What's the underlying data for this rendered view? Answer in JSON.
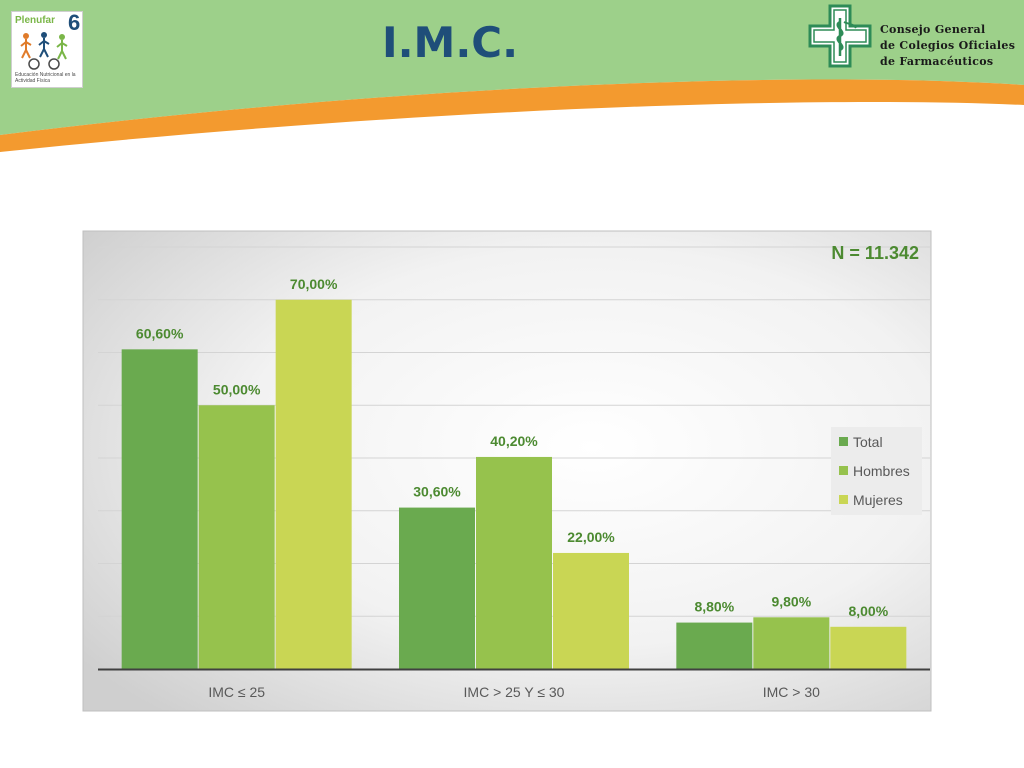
{
  "slide": {
    "title": "I.M.C.",
    "logo_left": {
      "brand": "Plenufar",
      "number": "6",
      "subtitle": "Educación Nutricional en la Actividad Física"
    },
    "logo_right": {
      "lines": [
        "Consejo General",
        "de Colegios Oficiales",
        "de Farmacéuticos"
      ]
    }
  },
  "colors": {
    "header_green": "#9dd08a",
    "header_orange": "#f39a2f",
    "total": "#6aaa4f",
    "hombres": "#96c24d",
    "mujeres": "#c9d654",
    "value_text": "#4c8a31"
  },
  "chart_data": {
    "type": "bar",
    "annotation": "N = 11.342",
    "categories": [
      "IMC ≤ 25",
      "IMC > 25 Y ≤ 30",
      "IMC > 30"
    ],
    "series": [
      {
        "name": "Total",
        "values": [
          60.6,
          30.6,
          8.8
        ],
        "labels": [
          "60,60%",
          "30,60%",
          "8,80%"
        ]
      },
      {
        "name": "Hombres",
        "values": [
          50.0,
          40.2,
          9.8
        ],
        "labels": [
          "50,00%",
          "40,20%",
          "9,80%"
        ]
      },
      {
        "name": "Mujeres",
        "values": [
          70.0,
          22.0,
          8.0
        ],
        "labels": [
          "70,00%",
          "22,00%",
          "8,00%"
        ]
      }
    ],
    "ylim": [
      0,
      80
    ],
    "grid": true,
    "legend_position": "right"
  }
}
